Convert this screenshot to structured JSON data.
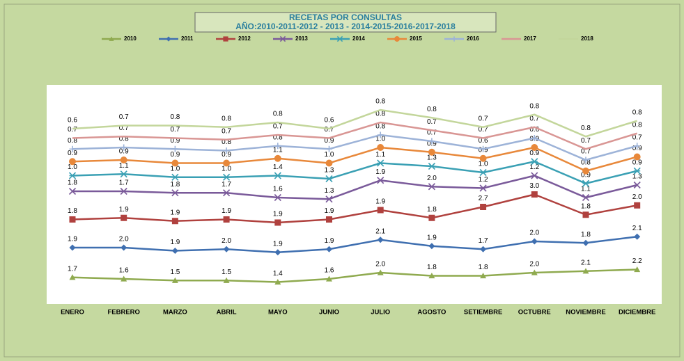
{
  "chart_data": {
    "type": "line",
    "stacked": true,
    "title": "RECETAS POR CONSULTAS",
    "subtitle": "AÑO:2010-2011-2012 - 2013 - 2014-2015-2016-2017-2018",
    "categories": [
      "ENERO",
      "FEBRERO",
      "MARZO",
      "ABRIL",
      "MAYO",
      "JUNIO",
      "JULIO",
      "AGOSTO",
      "SETIEMBRE",
      "OCTUBRE",
      "NOVIEMBRE",
      "DICIEMBRE"
    ],
    "ylim": [
      0,
      14
    ],
    "series": [
      {
        "name": "2010",
        "color": "#8faa4f",
        "marker": "triangle",
        "values": [
          1.7,
          1.6,
          1.5,
          1.5,
          1.4,
          1.6,
          2.0,
          1.8,
          1.8,
          2.0,
          2.1,
          2.2
        ],
        "value_labels": [
          "1.7",
          "1.6",
          "1.5",
          "1.5",
          "1.4",
          "1.6",
          "2.0",
          "1.8",
          "1.8",
          "2.0",
          "2.1",
          "2.2"
        ]
      },
      {
        "name": "2011",
        "color": "#3f6fb0",
        "marker": "diamond",
        "values": [
          1.9,
          2.0,
          1.9,
          2.0,
          1.9,
          1.9,
          2.1,
          1.9,
          1.7,
          2.0,
          1.8,
          2.1
        ],
        "value_labels": [
          "1.9",
          "2.0",
          "1.9",
          "2.0",
          "1.9",
          "1.9",
          "2.1",
          "1.9",
          "1.7",
          "2.0",
          "1.8",
          "2.1"
        ]
      },
      {
        "name": "2012",
        "color": "#b0413e",
        "marker": "square",
        "values": [
          1.8,
          1.9,
          1.9,
          1.9,
          1.9,
          1.9,
          1.9,
          1.8,
          2.7,
          3.0,
          1.8,
          2.0
        ],
        "value_labels": [
          "1.8",
          "1.9",
          "1.9",
          "1.9",
          "1.9",
          "1.9",
          "1.9",
          "1.8",
          "2.7",
          "3.0",
          "1.8",
          "2.0"
        ]
      },
      {
        "name": "2013",
        "color": "#7a5a9a",
        "marker": "x",
        "values": [
          1.8,
          1.7,
          1.8,
          1.7,
          1.6,
          1.3,
          1.9,
          2.0,
          1.2,
          1.2,
          1.1,
          1.3
        ],
        "value_labels": [
          "1.8",
          "1.7",
          "1.8",
          "1.7",
          "1.6",
          "1.3",
          "1.9",
          "2.0",
          "1.2",
          "1.2",
          "1.1",
          "1.3"
        ]
      },
      {
        "name": "2014",
        "color": "#3aa0b4",
        "marker": "star",
        "values": [
          1.0,
          1.1,
          1.0,
          1.0,
          1.4,
          1.3,
          1.1,
          1.3,
          1.0,
          0.9,
          0.9,
          0.9
        ],
        "value_labels": [
          "1.0",
          "1.1",
          "1.0",
          "1.0",
          "1.4",
          "1.3",
          "1.1",
          "1.3",
          "1.0",
          "0.9",
          "0.9",
          "0.9"
        ]
      },
      {
        "name": "2015",
        "color": "#e8883a",
        "marker": "circle",
        "values": [
          0.9,
          0.9,
          0.9,
          0.9,
          1.1,
          1.0,
          1.0,
          0.9,
          0.9,
          0.9,
          0.8,
          0.9
        ],
        "value_labels": [
          "0.9",
          "0.9",
          "0.9",
          "0.9",
          "1.1",
          "1.0",
          "1.0",
          "0.9",
          "0.9",
          "0.9",
          "0.8",
          "0.9"
        ]
      },
      {
        "name": "2016",
        "color": "#9db3d8",
        "marker": "plus",
        "values": [
          0.8,
          0.8,
          0.9,
          0.8,
          0.8,
          0.9,
          0.8,
          0.7,
          0.6,
          0.6,
          0.7,
          0.7
        ],
        "value_labels": [
          "0.8",
          "0.8",
          "0.9",
          "0.8",
          "0.8",
          "0.9",
          "0.8",
          "0.7",
          "0.6",
          "0.6",
          "0.7",
          "0.7"
        ]
      },
      {
        "name": "2017",
        "color": "#d99694",
        "marker": "none",
        "values": [
          0.7,
          0.7,
          0.7,
          0.7,
          0.7,
          0.7,
          0.8,
          0.7,
          0.7,
          0.7,
          0.7,
          0.8
        ],
        "value_labels": [
          "0.7",
          "0.7",
          "0.7",
          "0.7",
          "0.7",
          "0.7",
          "0.8",
          "0.7",
          "0.7",
          "0.7",
          "0.7",
          "0.8"
        ]
      },
      {
        "name": "2018",
        "color": "#c3d69b",
        "marker": "none",
        "values": [
          0.6,
          0.7,
          0.8,
          0.8,
          0.8,
          0.6,
          0.8,
          0.8,
          0.7,
          0.8,
          0.8,
          0.8
        ],
        "value_labels": [
          "0.6",
          "0.7",
          "0.8",
          "0.8",
          "0.8",
          "0.6",
          "0.8",
          "0.8",
          "0.7",
          "0.8",
          "0.8",
          "0.8"
        ]
      }
    ]
  }
}
